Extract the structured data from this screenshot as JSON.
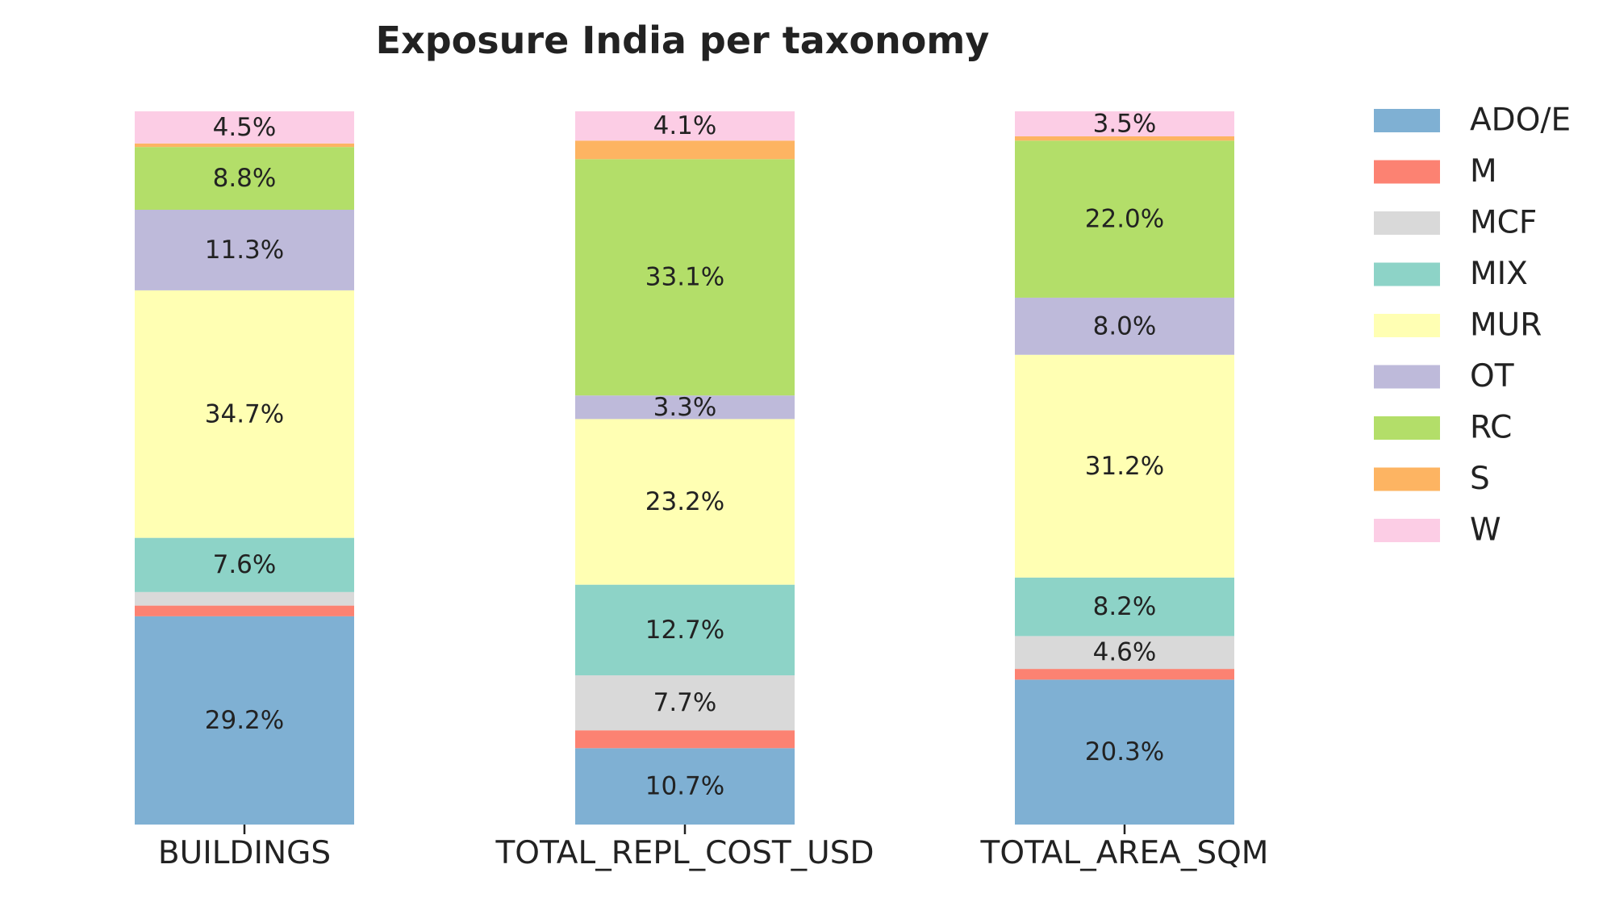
{
  "chart_data": {
    "type": "bar",
    "stacked": true,
    "normalized": true,
    "title": "Exposure India per taxonomy",
    "xlabel": "",
    "ylabel": "",
    "ylim": [
      0,
      100
    ],
    "grid": false,
    "legend_position": "right",
    "categories": [
      "BUILDINGS",
      "TOTAL_REPL_COST_USD",
      "TOTAL_AREA_SQM"
    ],
    "series": [
      {
        "name": "ADO/E",
        "color": "#7fb0d3",
        "values": [
          29.2,
          10.7,
          20.3
        ],
        "labels": [
          "29.2%",
          "10.7%",
          "20.3%"
        ]
      },
      {
        "name": "M",
        "color": "#fc8272",
        "values": [
          1.5,
          2.5,
          1.5
        ],
        "labels": [
          "",
          "",
          ""
        ]
      },
      {
        "name": "MCF",
        "color": "#d9d9d9",
        "values": [
          1.9,
          7.7,
          4.6
        ],
        "labels": [
          "",
          "7.7%",
          "4.6%"
        ]
      },
      {
        "name": "MIX",
        "color": "#8dd3c7",
        "values": [
          7.6,
          12.7,
          8.2
        ],
        "labels": [
          "7.6%",
          "12.7%",
          "8.2%"
        ]
      },
      {
        "name": "MUR",
        "color": "#ffffb3",
        "values": [
          34.7,
          23.2,
          31.2
        ],
        "labels": [
          "34.7%",
          "23.2%",
          "31.2%"
        ]
      },
      {
        "name": "OT",
        "color": "#bebada",
        "values": [
          11.3,
          3.3,
          8.0
        ],
        "labels": [
          "11.3%",
          "3.3%",
          "8.0%"
        ]
      },
      {
        "name": "RC",
        "color": "#b3de69",
        "values": [
          8.8,
          33.1,
          22.0
        ],
        "labels": [
          "8.8%",
          "33.1%",
          "22.0%"
        ]
      },
      {
        "name": "S",
        "color": "#fdb462",
        "values": [
          0.5,
          2.6,
          0.6
        ],
        "labels": [
          "",
          "",
          ""
        ]
      },
      {
        "name": "W",
        "color": "#fccde5",
        "values": [
          4.5,
          4.1,
          3.5
        ],
        "labels": [
          "4.5%",
          "4.1%",
          "3.5%"
        ]
      }
    ]
  }
}
